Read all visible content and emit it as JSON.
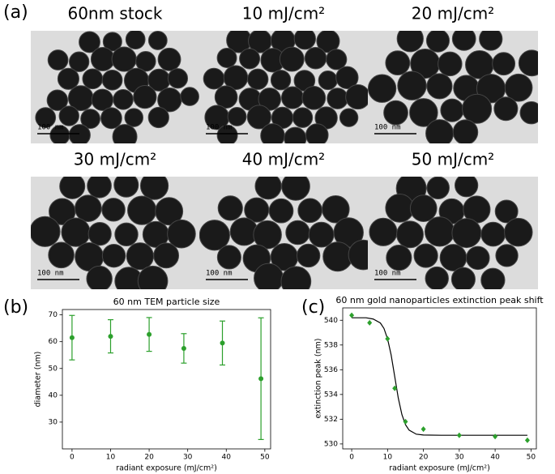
{
  "panels": {
    "a": {
      "label": "(a)",
      "scale_bar": "100 nm",
      "images": [
        "60nm stock",
        "10 mJ/cm²",
        "20 mJ/cm²",
        "30 mJ/cm²",
        "40 mJ/cm²",
        "50 mJ/cm²"
      ]
    },
    "b": {
      "label": "(b)"
    },
    "c": {
      "label": "(c)"
    }
  },
  "chart_data": [
    {
      "type": "scatter",
      "title": "60 nm TEM particle size",
      "x_label": "radiant exposure (mJ/cm²)",
      "y_label": "diameter (nm)",
      "x": [
        0,
        10,
        20,
        29,
        39,
        49
      ],
      "values": [
        61.5,
        62,
        62.7,
        57.5,
        59.5,
        46.2
      ],
      "errors": [
        8.3,
        6.2,
        6.3,
        5.5,
        8.2,
        22.7
      ],
      "color": "#2ca02c",
      "xlim": [
        -2.5,
        51.5
      ],
      "ylim": [
        20,
        72
      ],
      "xticks": [
        0,
        10,
        20,
        30,
        40,
        50
      ],
      "yticks": [
        30,
        40,
        50,
        60,
        70
      ]
    },
    {
      "type": "line",
      "title": "60 nm gold nanoparticles extinction peak shift",
      "x_label": "radiant exposure (mJ/cm²)",
      "y_label": "extinction peak (nm)",
      "series": [
        {
          "style": "markers",
          "color": "#2ca02c",
          "x": [
            0,
            5,
            10,
            12,
            15,
            20,
            30,
            40,
            49
          ],
          "values": [
            540.4,
            539.8,
            538.5,
            534.5,
            531.8,
            531.2,
            530.7,
            530.6,
            530.3
          ]
        },
        {
          "style": "line",
          "color": "#000000",
          "x": [
            0,
            4,
            6,
            8,
            9,
            10,
            11,
            12,
            13,
            14,
            15,
            16,
            18,
            20,
            25,
            30,
            40,
            49
          ],
          "values": [
            540.2,
            540.2,
            540.1,
            539.78,
            539.34,
            538.5,
            537.2,
            535.45,
            533.7,
            532.38,
            531.56,
            531.12,
            530.79,
            530.72,
            530.7,
            530.7,
            530.7,
            530.7
          ]
        }
      ],
      "xlim": [
        -2.5,
        51.5
      ],
      "ylim": [
        529.6,
        541
      ],
      "xticks": [
        0,
        10,
        20,
        30,
        40,
        50
      ],
      "yticks": [
        530,
        532,
        534,
        536,
        538,
        540
      ]
    }
  ]
}
